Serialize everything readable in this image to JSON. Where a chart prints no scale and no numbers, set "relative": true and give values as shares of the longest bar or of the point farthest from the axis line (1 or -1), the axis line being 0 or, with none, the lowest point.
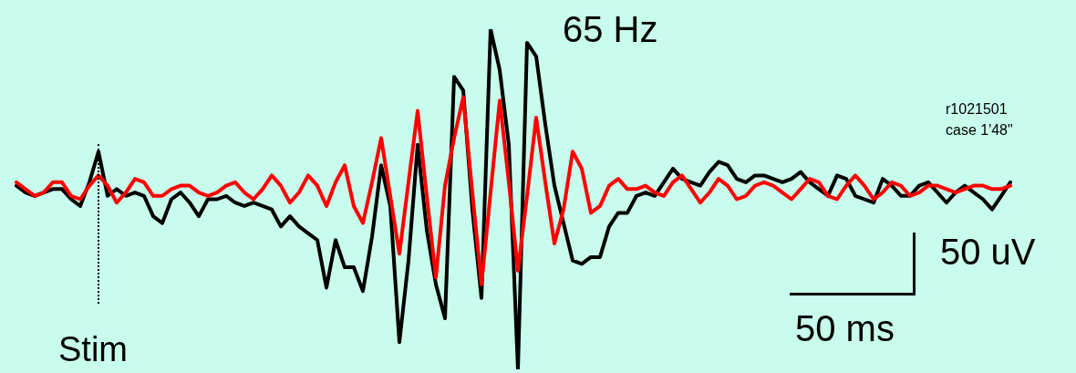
{
  "chart_data": {
    "type": "line",
    "relative": true,
    "marker": "none",
    "tick_labels": false,
    "categories": [
      null,
      null,
      null,
      null,
      null,
      null,
      null,
      null,
      null,
      null,
      null,
      null,
      null,
      null,
      null,
      null,
      null,
      null,
      null,
      null,
      null,
      null,
      null,
      null,
      null,
      null,
      null,
      null,
      null,
      null,
      null,
      null,
      null,
      null,
      null,
      null,
      null,
      null,
      null,
      null,
      null,
      null,
      null,
      null,
      null,
      null,
      null,
      null,
      null,
      null,
      null,
      null,
      null,
      null,
      null,
      null,
      null,
      null,
      null,
      null,
      null,
      null,
      null,
      null,
      null,
      null,
      null,
      null,
      null,
      null,
      null,
      null,
      null,
      null,
      null,
      null,
      null,
      null,
      null,
      null,
      null,
      null,
      null,
      null,
      null,
      null,
      null,
      null,
      null,
      null,
      null,
      null,
      null,
      null,
      null,
      null,
      null,
      null,
      null,
      null,
      null,
      null,
      null,
      null,
      null,
      null,
      null,
      null,
      null,
      null
    ],
    "annotations": [
      "65 Hz",
      "r1021501",
      "case 1'48\"",
      "50 uV",
      "50 ms",
      "Stim"
    ],
    "series": [
      {
        "color": "#000000",
        "values": [
          0.54,
          0.52,
          0.51,
          0.52,
          0.53,
          0.53,
          0.5,
          0.48,
          0.55,
          0.64,
          0.51,
          0.53,
          0.51,
          0.52,
          0.51,
          0.45,
          0.43,
          0.5,
          0.52,
          0.49,
          0.45,
          0.5,
          0.5,
          0.51,
          0.49,
          0.48,
          0.49,
          0.48,
          0.47,
          0.42,
          0.45,
          0.42,
          0.4,
          0.38,
          0.24,
          0.38,
          0.3,
          0.3,
          0.23,
          0.39,
          0.6,
          0.48,
          0.08,
          0.32,
          0.66,
          0.41,
          0.25,
          0.15,
          0.86,
          0.82,
          0.47,
          0.21,
          1.0,
          0.88,
          0.66,
          0.0,
          0.96,
          0.92,
          0.72,
          0.54,
          0.43,
          0.32,
          0.31,
          0.33,
          0.33,
          0.42,
          0.46,
          0.46,
          0.51,
          0.52,
          0.51,
          0.55,
          0.59,
          0.56,
          0.55,
          0.54,
          0.58,
          0.61,
          0.6,
          0.56,
          0.55,
          0.57,
          0.57,
          0.56,
          0.55,
          0.56,
          0.58,
          0.55,
          0.53,
          0.51,
          0.57,
          0.56,
          0.51,
          0.5,
          0.49,
          0.56,
          0.54,
          0.51,
          0.51,
          0.54,
          0.55,
          0.52,
          0.49,
          0.52,
          0.54,
          0.52,
          0.5,
          0.47,
          0.51,
          0.55
        ]
      },
      {
        "color": "#ff0000",
        "values": [
          0.55,
          0.53,
          0.51,
          0.52,
          0.55,
          0.55,
          0.51,
          0.5,
          0.54,
          0.57,
          0.54,
          0.49,
          0.52,
          0.56,
          0.55,
          0.51,
          0.51,
          0.53,
          0.54,
          0.54,
          0.52,
          0.51,
          0.52,
          0.54,
          0.55,
          0.52,
          0.5,
          0.53,
          0.57,
          0.54,
          0.49,
          0.52,
          0.57,
          0.54,
          0.48,
          0.55,
          0.6,
          0.48,
          0.43,
          0.55,
          0.68,
          0.51,
          0.34,
          0.55,
          0.76,
          0.51,
          0.27,
          0.54,
          0.68,
          0.8,
          0.52,
          0.25,
          0.52,
          0.79,
          0.55,
          0.29,
          0.51,
          0.74,
          0.55,
          0.37,
          0.47,
          0.64,
          0.59,
          0.46,
          0.48,
          0.54,
          0.56,
          0.53,
          0.53,
          0.54,
          0.52,
          0.51,
          0.55,
          0.57,
          0.53,
          0.49,
          0.52,
          0.56,
          0.54,
          0.5,
          0.51,
          0.54,
          0.55,
          0.54,
          0.52,
          0.5,
          0.53,
          0.56,
          0.55,
          0.51,
          0.5,
          0.54,
          0.57,
          0.54,
          0.5,
          0.52,
          0.55,
          0.54,
          0.51,
          0.52,
          0.54,
          0.54,
          0.53,
          0.52,
          0.53,
          0.54,
          0.54,
          0.53,
          0.53,
          0.54
        ]
      }
    ]
  }
}
